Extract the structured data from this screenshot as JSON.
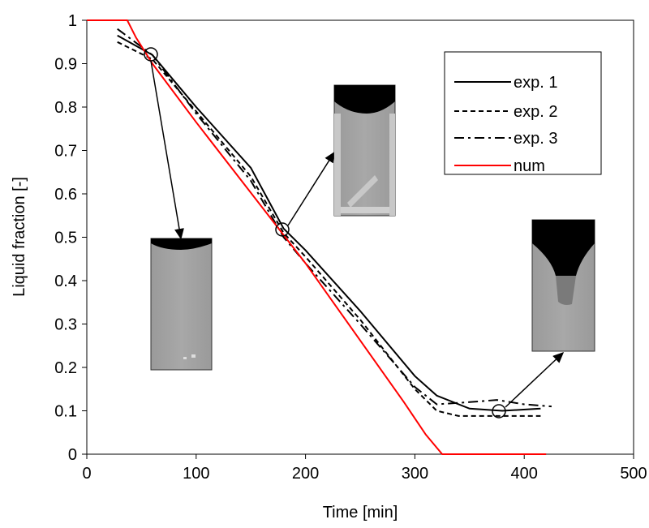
{
  "chart_data": {
    "type": "line",
    "xlabel": "Time [min]",
    "ylabel": "Liquid fraction [-]",
    "xlim": [
      0,
      500
    ],
    "xticks": [
      0,
      100,
      200,
      300,
      400,
      500
    ],
    "ylim": [
      0,
      1
    ],
    "yticks": [
      0,
      0.1,
      0.2,
      0.3,
      0.4,
      0.5,
      0.6,
      0.7,
      0.8,
      0.9,
      1
    ],
    "legend": "upper right",
    "series": [
      {
        "name": "exp. 1",
        "color": "#000000",
        "dash": "solid",
        "x": [
          28,
          60,
          100,
          150,
          180,
          200,
          250,
          300,
          320,
          350,
          380,
          415
        ],
        "values": [
          0.965,
          0.92,
          0.8,
          0.66,
          0.52,
          0.47,
          0.33,
          0.18,
          0.135,
          0.105,
          0.1,
          0.105
        ]
      },
      {
        "name": "exp. 2",
        "color": "#000000",
        "dash": "dashed",
        "x": [
          28,
          60,
          100,
          150,
          180,
          200,
          250,
          300,
          320,
          340,
          380,
          415
        ],
        "values": [
          0.95,
          0.91,
          0.79,
          0.64,
          0.51,
          0.455,
          0.31,
          0.15,
          0.1,
          0.088,
          0.088,
          0.088
        ]
      },
      {
        "name": "exp. 3",
        "color": "#000000",
        "dash": "dashdot",
        "x": [
          28,
          60,
          100,
          150,
          180,
          200,
          250,
          300,
          320,
          350,
          375,
          400,
          425
        ],
        "values": [
          0.98,
          0.92,
          0.785,
          0.63,
          0.5,
          0.44,
          0.3,
          0.155,
          0.115,
          0.12,
          0.125,
          0.115,
          0.11
        ]
      },
      {
        "name": "num",
        "color": "#ff0000",
        "dash": "solid",
        "x": [
          0,
          37,
          45,
          60,
          100,
          200,
          290,
          310,
          325,
          420
        ],
        "values": [
          1,
          1,
          0.96,
          0.9,
          0.765,
          0.44,
          0.12,
          0.045,
          0,
          0
        ]
      }
    ]
  }
}
